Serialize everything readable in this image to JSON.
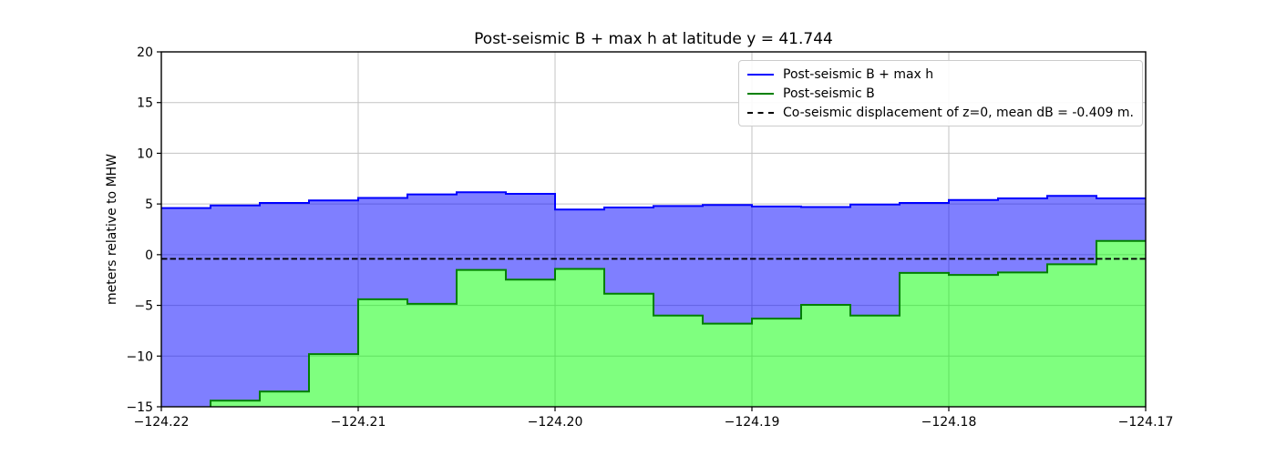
{
  "chart_data": {
    "type": "area",
    "subtype": "step-post-filled",
    "title": "Post-seismic B + max h at latitude y = 41.744",
    "xlabel": "",
    "ylabel": "meters relative to MHW",
    "xlim": [
      -124.22,
      -124.17
    ],
    "ylim": [
      -15,
      20
    ],
    "grid": true,
    "x_edges": [
      -124.22,
      -124.2175,
      -124.215,
      -124.2125,
      -124.21,
      -124.2075,
      -124.205,
      -124.2025,
      -124.2,
      -124.1975,
      -124.195,
      -124.1925,
      -124.19,
      -124.1875,
      -124.185,
      -124.1825,
      -124.18,
      -124.1775,
      -124.175,
      -124.1725,
      -124.17
    ],
    "series": [
      {
        "name": "Post-seismic B + max h",
        "line_color": "#0000ff",
        "fill_color": "#0000ff",
        "fill_opacity": 0.5,
        "values": [
          4.6,
          4.85,
          5.1,
          5.35,
          5.6,
          5.95,
          6.15,
          6.0,
          4.45,
          4.65,
          4.8,
          4.9,
          4.75,
          4.7,
          4.95,
          5.1,
          5.4,
          5.55,
          5.8,
          5.55
        ]
      },
      {
        "name": "Post-seismic B",
        "line_color": "#008000",
        "fill_color": "#00ff00",
        "fill_opacity": 0.5,
        "values": [
          -15.5,
          -14.4,
          -13.5,
          -9.8,
          -4.4,
          -4.85,
          -1.5,
          -2.45,
          -1.4,
          -3.85,
          -6.0,
          -6.8,
          -6.3,
          -4.95,
          -6.0,
          -1.8,
          -2.0,
          -1.75,
          -0.95,
          1.35
        ]
      }
    ],
    "reference_line": {
      "label": "Co-seismic displacement of z=0, mean dB = -0.409 m.",
      "y": -0.409,
      "color": "#000000",
      "style": "dashed"
    },
    "x_ticks": [
      -124.22,
      -124.21,
      -124.2,
      -124.19,
      -124.18,
      -124.17
    ],
    "x_tick_labels": [
      "−124.22",
      "−124.21",
      "−124.20",
      "−124.19",
      "−124.18",
      "−124.17"
    ],
    "y_ticks": [
      20,
      15,
      10,
      5,
      0,
      -5,
      -10,
      -15
    ],
    "y_tick_labels": [
      "20",
      "15",
      "10",
      "5",
      "0",
      "−5",
      "−10",
      "−15"
    ],
    "legend": {
      "position": "upper right",
      "items": [
        {
          "label": "Post-seismic B + max h",
          "color": "#0000ff",
          "line_style": "solid"
        },
        {
          "label": "Post-seismic B",
          "color": "#008000",
          "line_style": "solid"
        },
        {
          "label": "Co-seismic displacement of z=0, mean dB = -0.409 m.",
          "color": "#000000",
          "line_style": "dashed"
        }
      ]
    }
  },
  "colors": {
    "grid": "#c3c3c3",
    "axis": "#000000",
    "background": "#ffffff"
  }
}
